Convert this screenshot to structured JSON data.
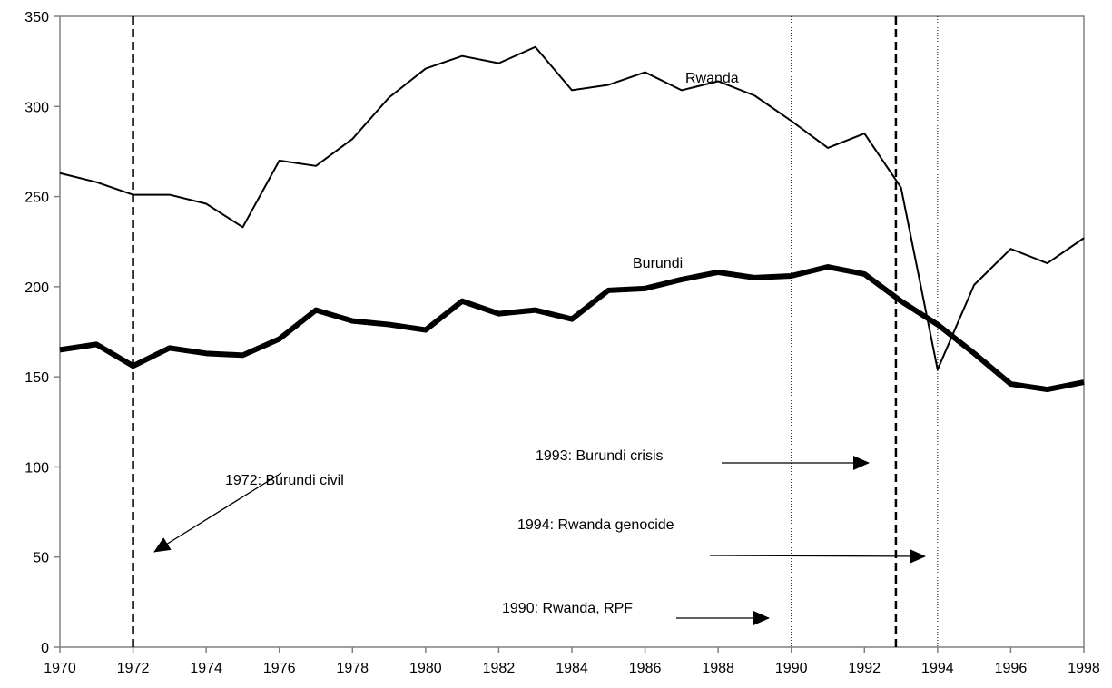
{
  "chart_data": {
    "type": "line",
    "x": [
      1970,
      1971,
      1972,
      1973,
      1974,
      1975,
      1976,
      1977,
      1978,
      1979,
      1980,
      1981,
      1982,
      1983,
      1984,
      1985,
      1986,
      1987,
      1988,
      1989,
      1990,
      1991,
      1992,
      1993,
      1994,
      1995,
      1996,
      1997,
      1998
    ],
    "series": [
      {
        "name": "Rwanda",
        "color": "#000000",
        "width": 2,
        "values": [
          263,
          258,
          251,
          251,
          246,
          233,
          270,
          267,
          282,
          305,
          321,
          328,
          324,
          333,
          309,
          312,
          319,
          309,
          314,
          306,
          292,
          277,
          285,
          255,
          154,
          201,
          221,
          213,
          227
        ]
      },
      {
        "name": "Burundi",
        "color": "#000000",
        "width": 6,
        "values": [
          165,
          168,
          156,
          166,
          163,
          162,
          171,
          187,
          181,
          179,
          176,
          192,
          185,
          187,
          182,
          198,
          199,
          204,
          208,
          205,
          206,
          211,
          207,
          192,
          179,
          163,
          146,
          143,
          147
        ]
      }
    ],
    "xlim": [
      1970,
      1998
    ],
    "xticks": [
      1970,
      1972,
      1974,
      1976,
      1978,
      1980,
      1982,
      1984,
      1986,
      1988,
      1990,
      1992,
      1994,
      1996,
      1998
    ],
    "ylim": [
      0,
      350
    ],
    "yticks": [
      0,
      50,
      100,
      150,
      200,
      250,
      300,
      350
    ],
    "vlines": [
      {
        "x": 1972,
        "style": "dashed"
      },
      {
        "x": 1990,
        "style": "dotted"
      },
      {
        "x": 1992.86,
        "style": "dashed"
      },
      {
        "x": 1994,
        "style": "dotted"
      }
    ],
    "annotations": [
      "1972: Burundi civil",
      "1993: Burundi crisis",
      "1994: Rwanda genocide",
      "1990: Rwanda, RPF"
    ]
  }
}
